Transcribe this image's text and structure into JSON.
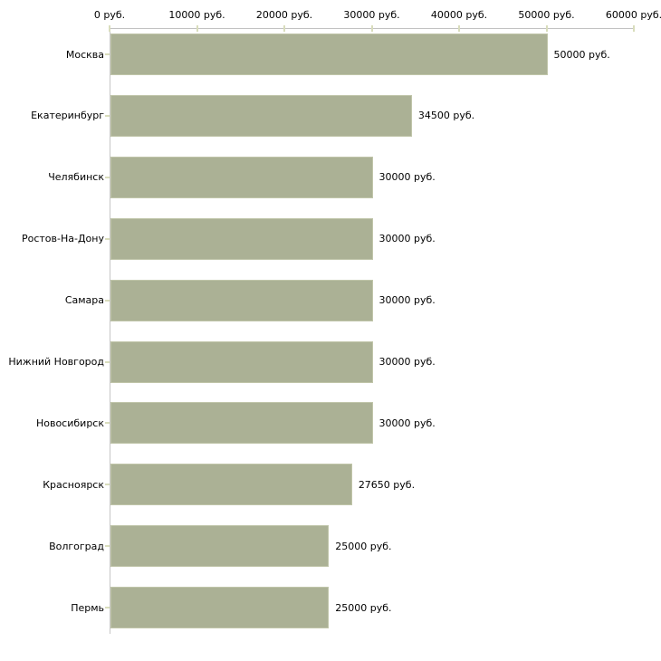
{
  "chart_data": {
    "type": "bar",
    "orientation": "horizontal",
    "categories": [
      "Москва",
      "Екатеринбург",
      "Челябинск",
      "Ростов-На-Дону",
      "Самара",
      "Нижний Новгород",
      "Новосибирск",
      "Красноярск",
      "Волгоград",
      "Пермь"
    ],
    "values": [
      50000,
      34500,
      30000,
      30000,
      30000,
      30000,
      30000,
      27650,
      25000,
      25000
    ],
    "value_labels": [
      "50000 руб.",
      "34500 руб.",
      "30000 руб.",
      "30000 руб.",
      "30000 руб.",
      "30000 руб.",
      "30000 руб.",
      "27650 руб.",
      "25000 руб.",
      "25000 руб."
    ],
    "x_tick_labels": [
      "0 руб.",
      "10000 руб.",
      "20000 руб.",
      "30000 руб.",
      "40000 руб.",
      "50000 руб.",
      "60000 руб."
    ],
    "x_tick_values": [
      0,
      10000,
      20000,
      30000,
      40000,
      50000,
      60000
    ],
    "xlim": [
      0,
      60000
    ],
    "unit": "руб.",
    "axis_position": "top",
    "grid": false,
    "legend": null,
    "colors": {
      "bar_fill": "#abb195",
      "bar_border": "#c0c5a9",
      "axis_line": "#c2c2c2",
      "tick_mark": "#d9ddbc",
      "text": "#000000",
      "background": "#ffffff"
    }
  }
}
